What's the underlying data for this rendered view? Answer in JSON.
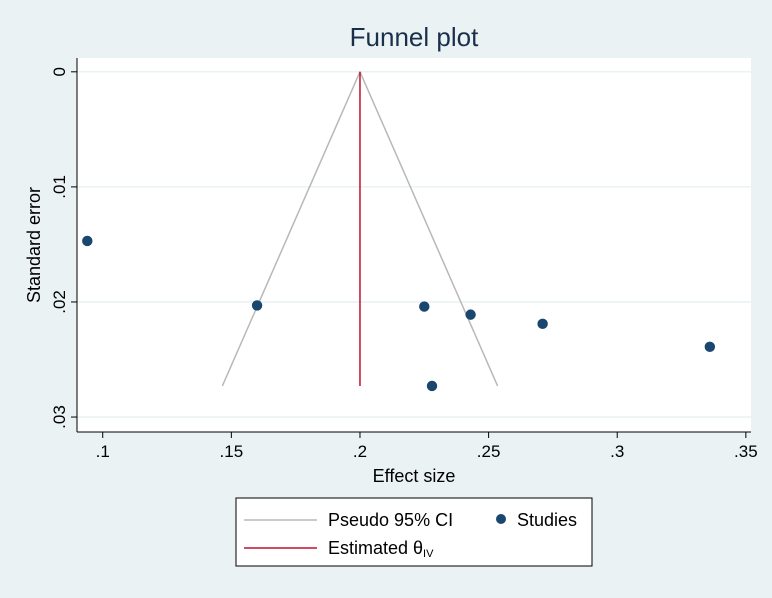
{
  "chart_data": {
    "type": "scatter",
    "title": "Funnel plot",
    "xlabel": "Effect size",
    "ylabel": "Standard error",
    "xlim": [
      0.09,
      0.352
    ],
    "ylim": [
      0.0313,
      -0.0012
    ],
    "y_reversed": true,
    "x_ticks": [
      0.1,
      0.15,
      0.2,
      0.25,
      0.3,
      0.35
    ],
    "x_tick_labels": [
      ".1",
      ".15",
      ".2",
      ".25",
      ".3",
      ".35"
    ],
    "y_ticks": [
      0,
      0.01,
      0.02,
      0.03
    ],
    "y_tick_labels": [
      "0",
      ".01",
      ".02",
      ".03"
    ],
    "grid": "horizontal",
    "estimated_effect": 0.2,
    "funnel": {
      "center": 0.2,
      "se_max": 0.0273,
      "lower_at_se_max": 0.1465,
      "upper_at_se_max": 0.2535
    },
    "studies": {
      "x": [
        0.094,
        0.16,
        0.225,
        0.228,
        0.243,
        0.271,
        0.336
      ],
      "y": [
        0.0147,
        0.0203,
        0.0204,
        0.0273,
        0.0211,
        0.0219,
        0.0239
      ]
    },
    "colors": {
      "background": "#eaf2f3",
      "plot_area": "#ffffff",
      "grid": "#eaf2f3",
      "funnel": "#b8b8b8",
      "estimate": "#c0102f",
      "studies": "#1a476f",
      "title": "#1a2f4b"
    },
    "legend": {
      "position": "bottom",
      "items": [
        {
          "label": "Pseudo 95% CI",
          "kind": "line"
        },
        {
          "label": "Studies",
          "kind": "marker"
        },
        {
          "label": "Estimated θ",
          "subscript": "IV",
          "kind": "line"
        }
      ]
    }
  }
}
